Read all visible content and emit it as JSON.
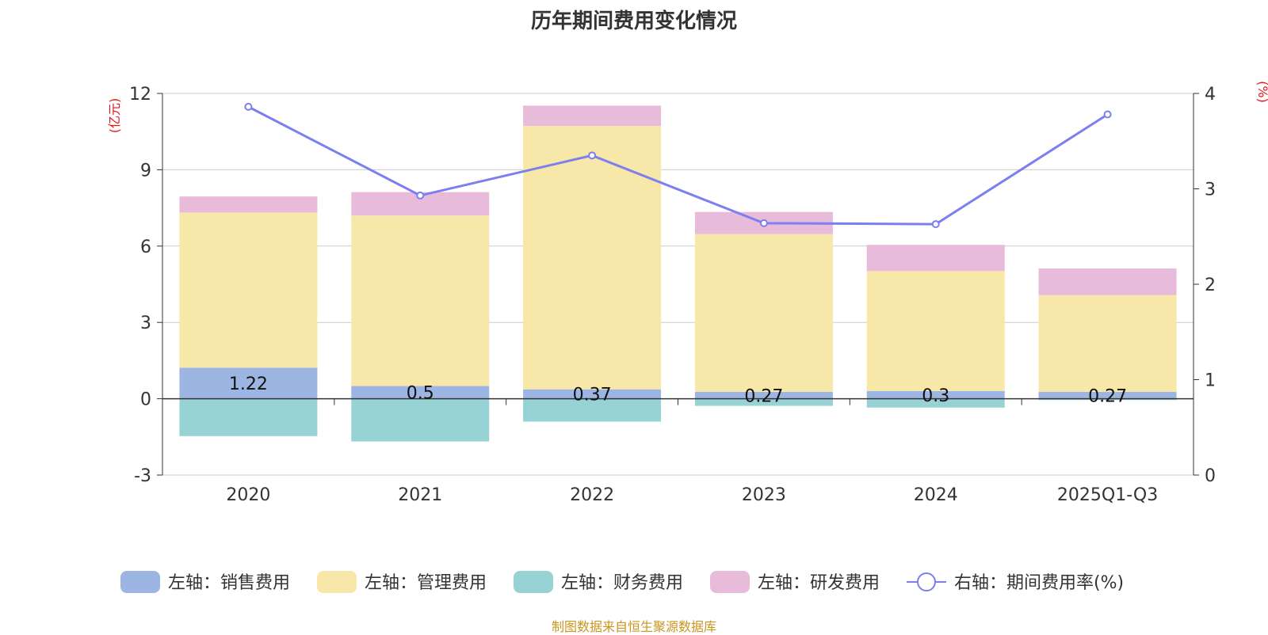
{
  "title": "历年期间费用变化情况",
  "source_note": "制图数据来自恒生聚源数据库",
  "colors": {
    "sales": "#9db5e2",
    "admin": "#f7e7a8",
    "finance": "#97d3d5",
    "rnd": "#e8bbda",
    "line": "#7b7ff0",
    "unit": "#e0161c",
    "source": "#c8961e",
    "grid": "#cccccc",
    "axis": "#333333"
  },
  "chart_data": {
    "type": "bar",
    "stacked": true,
    "categories": [
      "2020",
      "2021",
      "2022",
      "2023",
      "2024",
      "2025Q1-Q3"
    ],
    "left_axis": {
      "unit": "(亿元)",
      "min": -3,
      "max": 12,
      "ticks": [
        -3,
        0,
        3,
        6,
        9,
        12
      ]
    },
    "right_axis": {
      "unit": "(%)",
      "min": 0,
      "max": 4,
      "ticks": [
        0,
        1,
        2,
        3,
        4
      ]
    },
    "series": [
      {
        "key": "sales",
        "name": "左轴：销售费用",
        "axis": "left",
        "values": [
          1.22,
          0.5,
          0.37,
          0.27,
          0.3,
          0.27
        ],
        "labels": [
          "1.22",
          "0.5",
          "0.37",
          "0.27",
          "0.3",
          "0.27"
        ]
      },
      {
        "key": "admin",
        "name": "左轴：管理费用",
        "axis": "left",
        "values": [
          6.1,
          6.7,
          10.35,
          6.2,
          4.72,
          3.8
        ]
      },
      {
        "key": "finance",
        "name": "左轴：财务费用",
        "axis": "left",
        "values": [
          -1.47,
          -1.68,
          -0.9,
          -0.28,
          -0.35,
          -0.05
        ]
      },
      {
        "key": "rnd",
        "name": "左轴：研发费用",
        "axis": "left",
        "values": [
          0.63,
          0.92,
          0.8,
          0.87,
          1.03,
          1.05
        ]
      },
      {
        "key": "rate",
        "name": "右轴：期间费用率(%)",
        "axis": "right",
        "type": "line",
        "values": [
          3.86,
          2.93,
          3.35,
          2.64,
          2.63,
          3.78
        ]
      }
    ]
  }
}
